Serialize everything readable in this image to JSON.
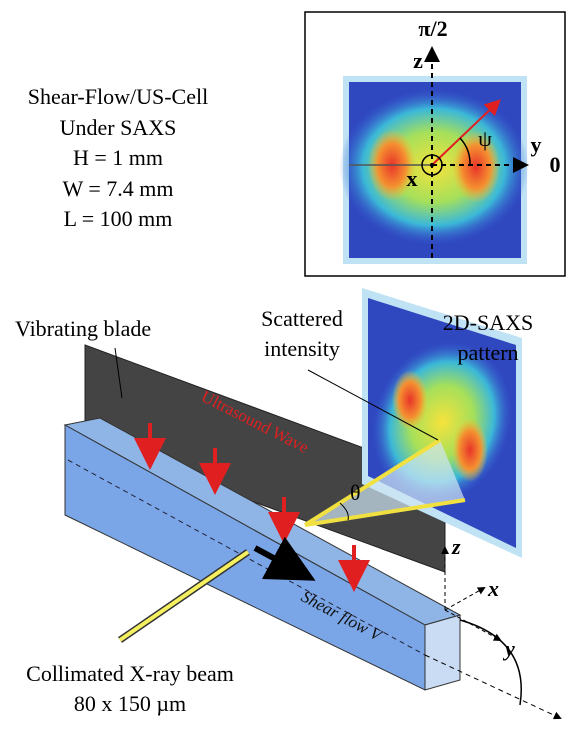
{
  "parameters": {
    "lines": [
      "Shear-Flow/US-Cell",
      "Under SAXS",
      "H = 1 mm",
      "W = 7.4 mm",
      "L = 100 mm"
    ]
  },
  "inset": {
    "axis_top": "π/2",
    "z": "z",
    "y": "y",
    "zero": "0",
    "x": "x",
    "psi": "ψ"
  },
  "setup": {
    "blade": "Vibrating blade",
    "scattered": [
      "Scattered",
      "intensity"
    ],
    "pattern": [
      "2D-SAXS",
      "pattern"
    ],
    "wave": "Ultrasound Wave",
    "theta": "θ",
    "axes": {
      "z": "z",
      "x": "x",
      "y": "y"
    },
    "flow": "Shear flow V",
    "beam": [
      "Collimated X-ray beam",
      "80 x 150 µm"
    ]
  }
}
